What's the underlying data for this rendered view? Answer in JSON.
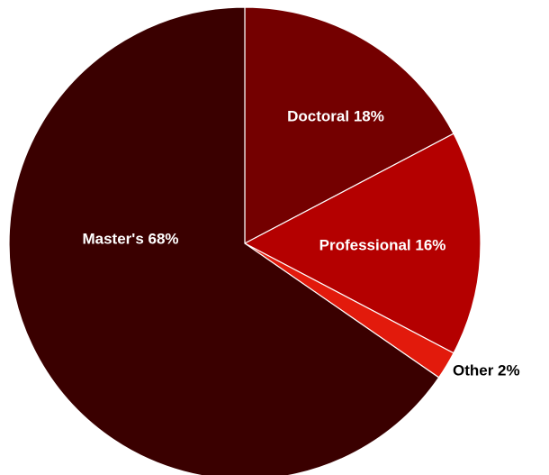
{
  "chart_data": {
    "type": "pie",
    "slices": [
      {
        "label": "Doctoral",
        "value": 18,
        "display": "Doctoral 18%",
        "color": "#740000",
        "label_color": "#ffffff",
        "label_placement": "inside"
      },
      {
        "label": "Professional",
        "value": 16,
        "display": "Professional 16%",
        "color": "#b40000",
        "label_color": "#ffffff",
        "label_placement": "inside"
      },
      {
        "label": "Other",
        "value": 2,
        "display": "Other 2%",
        "color": "#e21a0c",
        "label_color": "#000000",
        "label_placement": "outside"
      },
      {
        "label": "Master's",
        "value": 68,
        "display": "Master's 68%",
        "color": "#3a0000",
        "label_color": "#ffffff",
        "label_placement": "inside"
      }
    ],
    "start_angle": "12 o'clock",
    "direction": "clockwise",
    "legend": "none"
  }
}
